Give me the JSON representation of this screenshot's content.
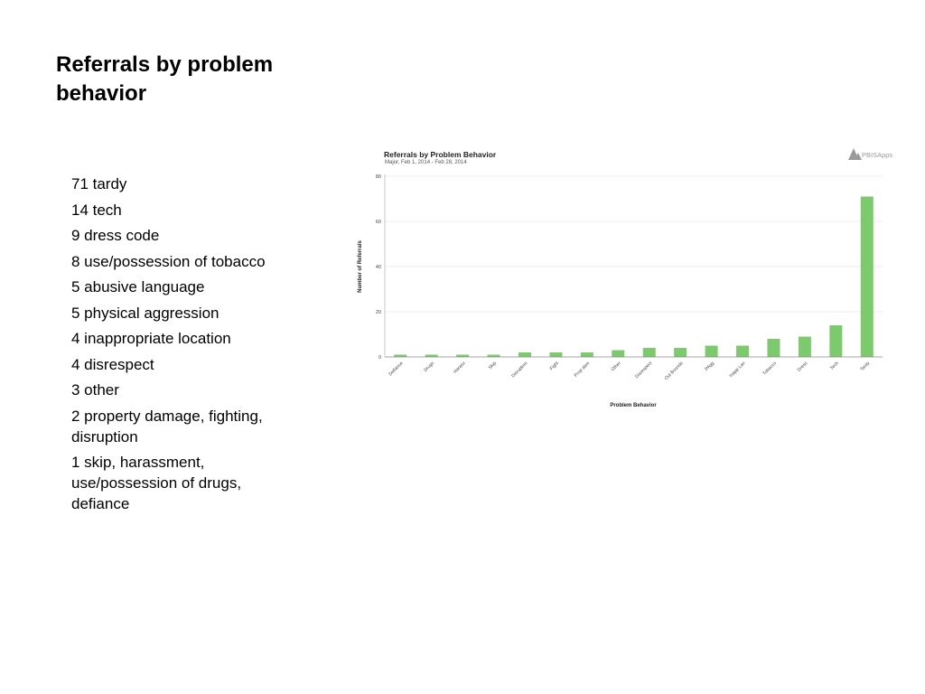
{
  "slide": {
    "title": "Referrals by problem behavior",
    "items": [
      "71 tardy",
      "14 tech",
      "9 dress code",
      "8 use/possession of tobacco",
      "5 abusive language",
      "5 physical aggression",
      "4 inappropriate location",
      "4 disrespect",
      "3 other",
      "2 property damage, fighting, disruption",
      "1 skip, harassment, use/possession of drugs, defiance"
    ]
  },
  "chart_data": {
    "type": "bar",
    "title": "Referrals by Problem Behavior",
    "subtitle": "Major, Feb 1, 2014 - Feb 28, 2014",
    "brand": "PBISApps",
    "xlabel": "Problem Behavior",
    "ylabel": "Number of Referrals",
    "ylim": [
      0,
      80
    ],
    "yticks": [
      0,
      20,
      40,
      60,
      80
    ],
    "grid": true,
    "bar_color": "#7dc96d",
    "categories": [
      "Defiance",
      "Drugs",
      "Harass",
      "Skip",
      "Disruption",
      "Fight",
      "Prop dam",
      "Other",
      "Disrespect",
      "Out Bounds",
      "PAgg",
      "Inapp Lan",
      "Tobacco",
      "Dress",
      "Tech",
      "Tardy"
    ],
    "values": [
      1,
      1,
      1,
      1,
      2,
      2,
      2,
      3,
      4,
      4,
      5,
      5,
      8,
      9,
      14,
      71
    ]
  }
}
